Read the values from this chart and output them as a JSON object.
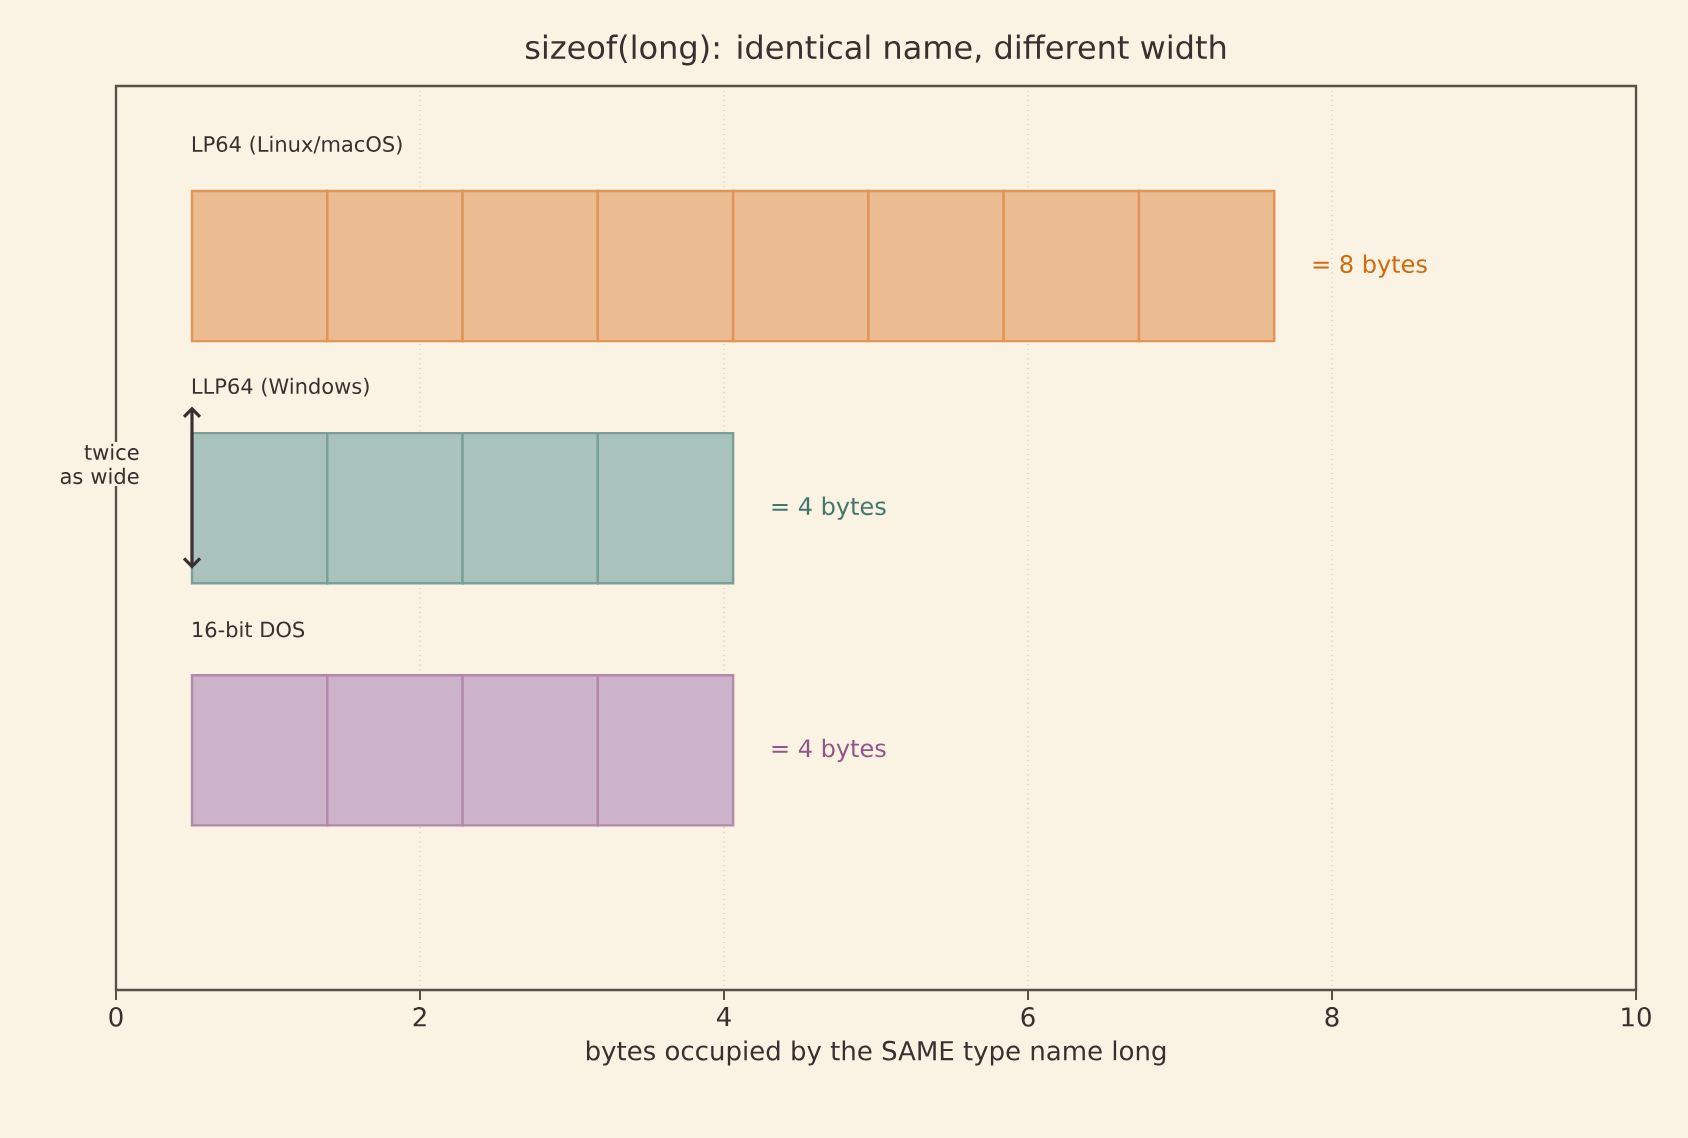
{
  "chart_data": {
    "type": "bar",
    "orientation": "horizontal",
    "title": "sizeof(long): identical name, different width",
    "xlabel": "bytes occupied by  the SAME type name  long",
    "categories": [
      "LP64 (Linux/macOS)",
      "LLP64 (Windows)",
      "16-bit DOS"
    ],
    "series": [
      {
        "colors": [
          "#ebbb91",
          "#a9c2bc",
          "#cdb3c9"
        ],
        "base": [
          0.5,
          0.5,
          0.5
        ],
        "values": [
          0.89,
          0.89,
          0.89
        ]
      },
      {
        "colors": [
          "#ebbb91",
          "#a9c2bc",
          "#cdb3c9"
        ],
        "base": [
          1.39,
          1.39,
          1.39
        ],
        "values": [
          0.89,
          0.89,
          0.89
        ]
      },
      {
        "colors": [
          "#ebbb91",
          "#a9c2bc",
          "#cdb3c9"
        ],
        "base": [
          2.28,
          2.28,
          2.28
        ],
        "values": [
          0.89,
          0.89,
          0.89
        ]
      },
      {
        "colors": [
          "#ebbb91",
          "#a9c2bc",
          "#cdb3c9"
        ],
        "base": [
          3.17,
          3.17,
          3.17
        ],
        "values": [
          0.89,
          0.89,
          0.89
        ]
      },
      {
        "colors": [
          "#ebbb91",
          "#a9c2bc",
          "#cdb3c9"
        ],
        "base": [
          4.06,
          null,
          null
        ],
        "values": [
          0.89,
          null,
          null
        ]
      },
      {
        "colors": [
          "#ebbb91",
          "#a9c2bc",
          "#cdb3c9"
        ],
        "base": [
          4.95,
          null,
          null
        ],
        "values": [
          0.89,
          null,
          null
        ]
      },
      {
        "colors": [
          "#ebbb91",
          "#a9c2bc",
          "#cdb3c9"
        ],
        "base": [
          5.84,
          null,
          null
        ],
        "values": [
          0.89,
          null,
          null
        ]
      },
      {
        "colors": [
          "#ebbb91",
          "#a9c2bc",
          "#cdb3c9"
        ],
        "base": [
          6.73,
          null,
          null
        ],
        "values": [
          0.89,
          null,
          null
        ]
      }
    ],
    "value_labels": [
      "= 8 bytes",
      "= 4 bytes",
      "= 4 bytes"
    ],
    "annotations": [
      "twice as wide"
    ],
    "xlim": [
      0,
      10
    ],
    "xticks": [
      0,
      2,
      4,
      6,
      8,
      10
    ],
    "grid": "x",
    "tick_labels": "x"
  }
}
